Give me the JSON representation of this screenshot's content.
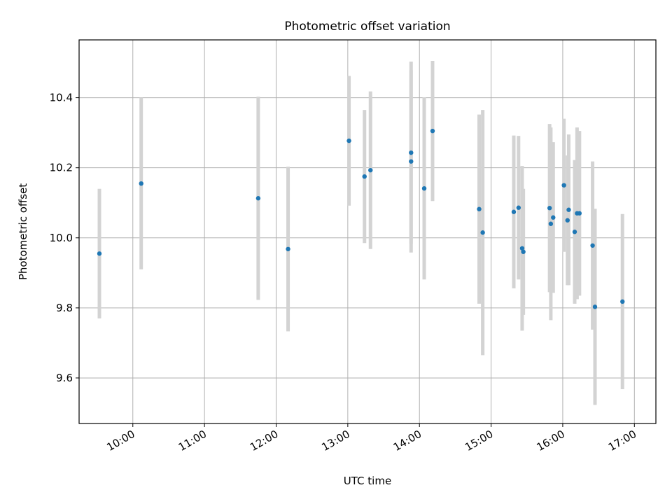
{
  "chart_data": {
    "type": "scatter",
    "title": "Photometric offset variation",
    "xlabel": "UTC time",
    "ylabel": "Photometric offset",
    "xlim": [
      "09:15",
      "17:18"
    ],
    "ylim": [
      9.47,
      10.565
    ],
    "x_ticks": [
      "10:00",
      "11:00",
      "12:00",
      "13:00",
      "14:00",
      "15:00",
      "16:00",
      "17:00"
    ],
    "y_ticks": [
      "9.6",
      "9.8",
      "10.0",
      "10.2",
      "10.4"
    ],
    "grid": true,
    "colors": {
      "point": "#1f77b4",
      "errorbar": "#d3d3d3",
      "grid": "#b0b0b0"
    },
    "series": [
      {
        "points": [
          {
            "x": "09:32",
            "y": 9.955,
            "err": 0.185
          },
          {
            "x": "10:07",
            "y": 10.155,
            "err": 0.245
          },
          {
            "x": "11:45",
            "y": 10.113,
            "err": 0.29
          },
          {
            "x": "12:10",
            "y": 9.968,
            "err": 0.235
          },
          {
            "x": "13:01",
            "y": 10.277,
            "err": 0.185
          },
          {
            "x": "13:14",
            "y": 10.175,
            "err": 0.19
          },
          {
            "x": "13:19",
            "y": 10.193,
            "err": 0.225
          },
          {
            "x": "13:53",
            "y": 10.243,
            "err": 0.26
          },
          {
            "x": "13:53",
            "y": 10.218,
            "err": 0.26
          },
          {
            "x": "14:04",
            "y": 10.141,
            "err": 0.26
          },
          {
            "x": "14:11",
            "y": 10.305,
            "err": 0.2
          },
          {
            "x": "14:50",
            "y": 10.082,
            "err": 0.27
          },
          {
            "x": "14:53",
            "y": 10.015,
            "err": 0.35
          },
          {
            "x": "15:19",
            "y": 10.074,
            "err": 0.218
          },
          {
            "x": "15:23",
            "y": 10.086,
            "err": 0.205
          },
          {
            "x": "15:26",
            "y": 9.97,
            "err": 0.235
          },
          {
            "x": "15:27",
            "y": 9.96,
            "err": 0.18
          },
          {
            "x": "15:49",
            "y": 10.085,
            "err": 0.24
          },
          {
            "x": "15:50",
            "y": 10.04,
            "err": 0.275
          },
          {
            "x": "15:52",
            "y": 10.058,
            "err": 0.215
          },
          {
            "x": "16:01",
            "y": 10.15,
            "err": 0.19
          },
          {
            "x": "16:04",
            "y": 10.05,
            "err": 0.185
          },
          {
            "x": "16:05",
            "y": 10.08,
            "err": 0.215
          },
          {
            "x": "16:10",
            "y": 10.017,
            "err": 0.205
          },
          {
            "x": "16:12",
            "y": 10.07,
            "err": 0.245
          },
          {
            "x": "16:14",
            "y": 10.07,
            "err": 0.235
          },
          {
            "x": "16:25",
            "y": 9.978,
            "err": 0.24
          },
          {
            "x": "16:27",
            "y": 9.803,
            "err": 0.28
          },
          {
            "x": "16:50",
            "y": 9.818,
            "err": 0.25
          }
        ]
      }
    ]
  }
}
